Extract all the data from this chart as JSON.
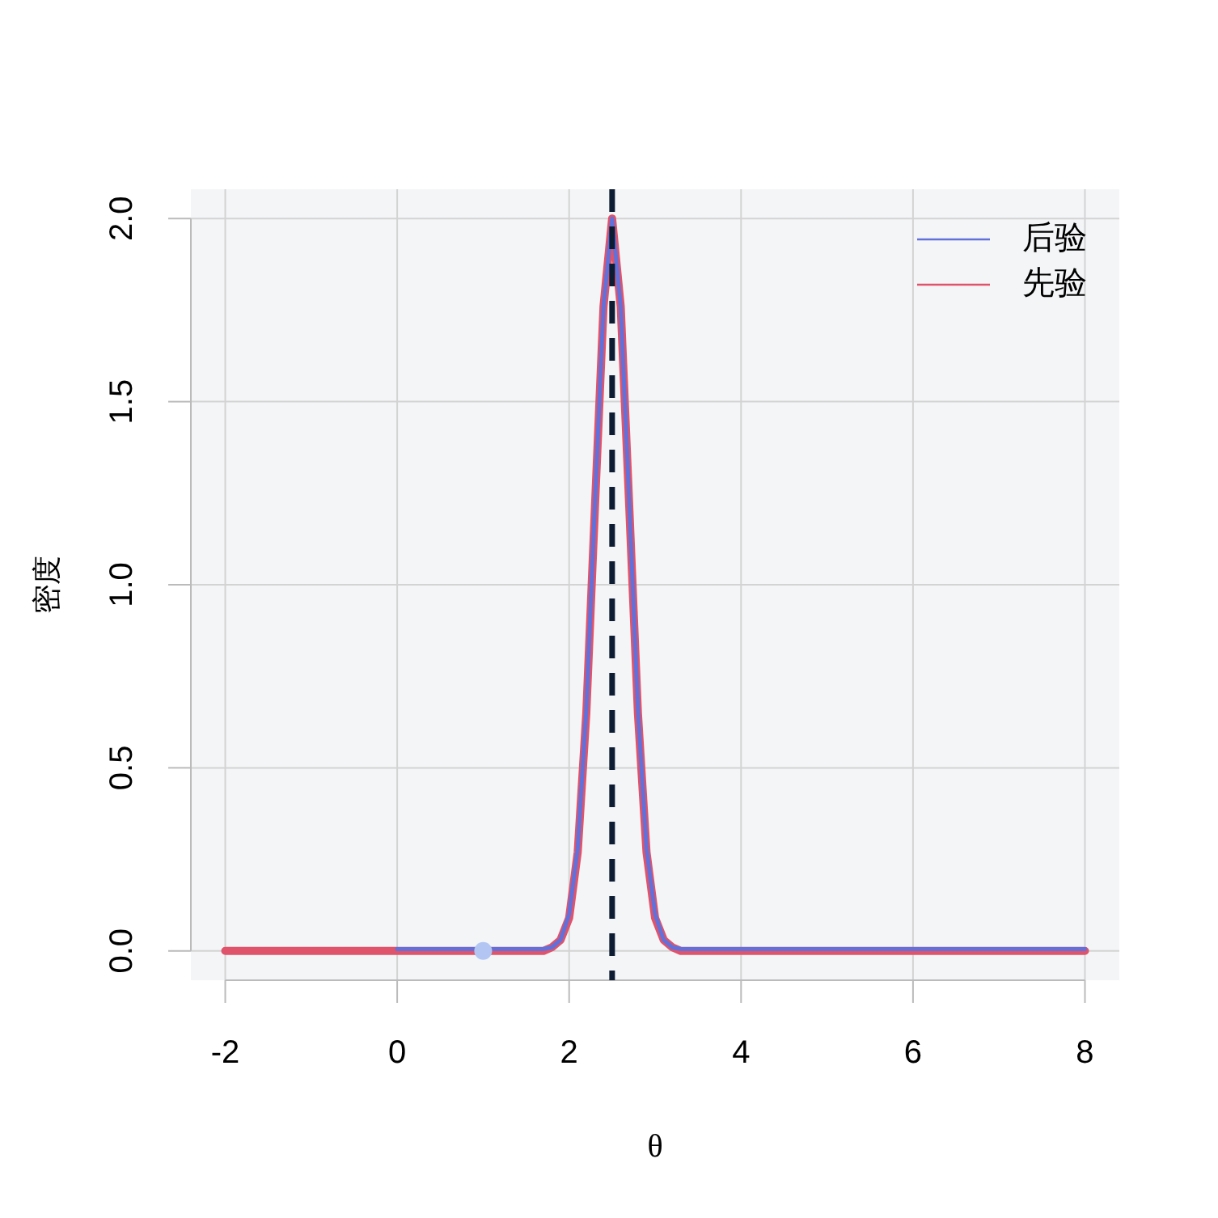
{
  "chart_data": {
    "type": "line",
    "xlabel": "θ",
    "ylabel": "密度",
    "xlim": [
      -2.4,
      8.4
    ],
    "ylim": [
      -0.08,
      2.08
    ],
    "xticks": [
      -2,
      0,
      2,
      4,
      6,
      8
    ],
    "yticks": [
      {
        "value": 0,
        "label": "0.0"
      },
      {
        "value": 0.5,
        "label": "0.5"
      },
      {
        "value": 1,
        "label": "1.0"
      },
      {
        "value": 1.5,
        "label": "1.5"
      },
      {
        "value": 2,
        "label": "2.0"
      }
    ],
    "grid": true,
    "legend": "top right",
    "line_style": "solid",
    "marker": "none",
    "ref_lines": [
      {
        "axis": "x",
        "value": 2.5,
        "color": "#0d1b33",
        "line_style": "dashed"
      }
    ],
    "series": [
      {
        "name": "后验",
        "color": "#6171d9",
        "x": [
          0,
          1.7,
          1.8,
          1.9,
          2.0,
          2.1,
          2.2,
          2.3,
          2.4,
          2.5,
          2.6,
          2.7,
          2.8,
          2.9,
          3.0,
          3.1,
          3.2,
          3.3,
          8
        ],
        "values": [
          0.005,
          0.005,
          0.01,
          0.03,
          0.1,
          0.28,
          0.66,
          1.22,
          1.76,
          2.0,
          1.76,
          1.22,
          0.66,
          0.28,
          0.1,
          0.03,
          0.01,
          0.005,
          0.005
        ]
      },
      {
        "name": "先验",
        "color": "#df536b",
        "x": [
          -2,
          1.7,
          1.8,
          1.9,
          2.0,
          2.1,
          2.2,
          2.3,
          2.4,
          2.5,
          2.6,
          2.7,
          2.8,
          2.9,
          3.0,
          3.1,
          3.2,
          3.3,
          8
        ],
        "values": [
          0,
          0,
          0.01,
          0.03,
          0.09,
          0.27,
          0.65,
          1.21,
          1.76,
          2.0,
          1.76,
          1.21,
          0.65,
          0.27,
          0.09,
          0.03,
          0.01,
          0,
          0
        ]
      },
      {
        "type": "scatter",
        "marker": "circle",
        "color": "#b3c6f3",
        "x": [
          1
        ],
        "values": [
          0
        ]
      }
    ]
  }
}
